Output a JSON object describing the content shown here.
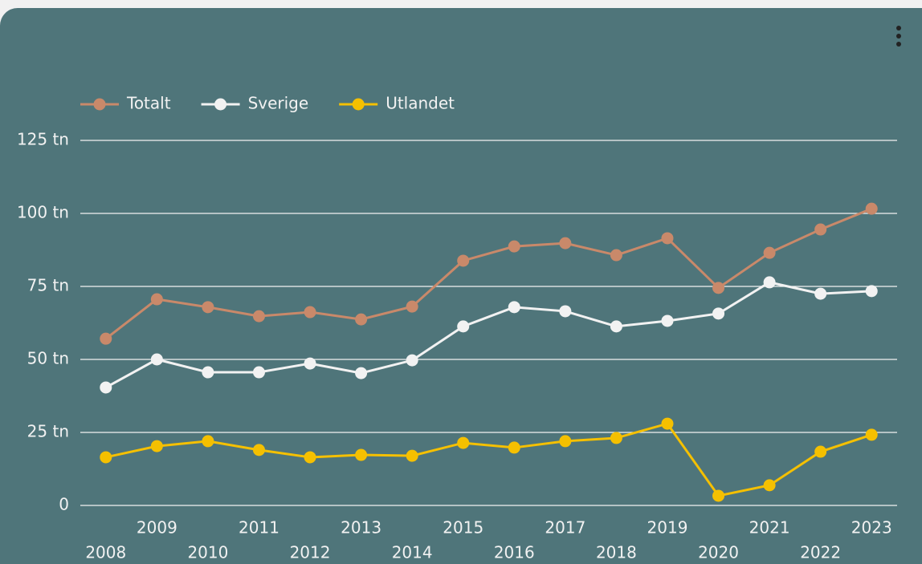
{
  "chart_data": {
    "type": "line",
    "categories": [
      "2008",
      "2009",
      "2010",
      "2011",
      "2012",
      "2013",
      "2014",
      "2015",
      "2016",
      "2017",
      "2018",
      "2019",
      "2020",
      "2021",
      "2022",
      "2023"
    ],
    "series": [
      {
        "name": "Totalt",
        "color": "#c9896a",
        "values": [
          57.1,
          70.6,
          67.9,
          64.8,
          66.2,
          63.7,
          68.1,
          83.8,
          88.7,
          89.8,
          85.7,
          91.5,
          74.5,
          86.5,
          94.5,
          101.6
        ]
      },
      {
        "name": "Sverige",
        "color": "#f2f2f2",
        "values": [
          40.4,
          50,
          45.6,
          45.6,
          48.6,
          45.3,
          49.7,
          61.3,
          67.9,
          66.5,
          61.3,
          63.2,
          65.7,
          76.4,
          72.5,
          73.4
        ]
      },
      {
        "name": "Utlandet",
        "color": "#f5c000",
        "values": [
          16.5,
          20.3,
          22,
          19,
          16.5,
          17.3,
          17,
          21.4,
          19.8,
          22,
          23.1,
          28,
          3.3,
          6.9,
          18.4,
          24.2
        ]
      }
    ],
    "ylim": [
      0,
      125
    ],
    "yticks": [
      0,
      {
        "value": 25,
        "label": "25 tn"
      },
      {
        "value": 50,
        "label": "50 tn"
      },
      {
        "value": 75,
        "label": "75 tn"
      },
      {
        "value": 100,
        "label": "100 tn"
      },
      {
        "value": 125,
        "label": "125 tn"
      }
    ],
    "grid": true,
    "legend": "top-left"
  }
}
